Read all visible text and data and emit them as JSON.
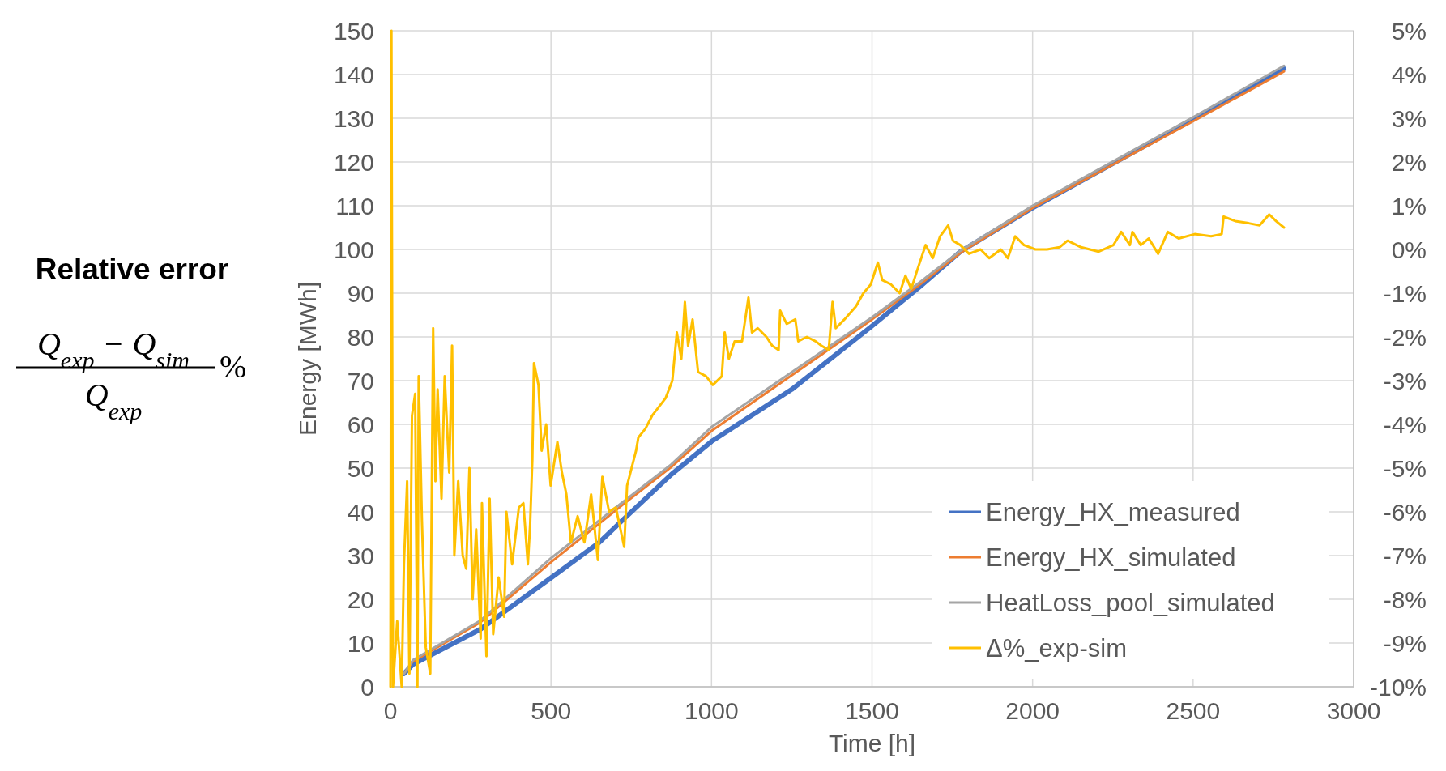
{
  "chart_data": {
    "type": "line",
    "xlabel": "Time [h]",
    "ylabel": "Energy [MWh]",
    "xlim": [
      0,
      3000
    ],
    "xticks": [
      0,
      500,
      1000,
      1500,
      2000,
      2500,
      3000
    ],
    "ylim": [
      0,
      150
    ],
    "yticks": [
      0,
      10,
      20,
      30,
      40,
      50,
      60,
      70,
      80,
      90,
      100,
      110,
      120,
      130,
      140,
      150
    ],
    "y2lim": [
      -10,
      5
    ],
    "y2ticks": [
      {
        "value": -10,
        "label": "-10%"
      },
      {
        "value": -9,
        "label": "-9%"
      },
      {
        "value": -8,
        "label": "-8%"
      },
      {
        "value": -7,
        "label": "-7%"
      },
      {
        "value": -6,
        "label": "-6%"
      },
      {
        "value": -5,
        "label": "-5%"
      },
      {
        "value": -4,
        "label": "-4%"
      },
      {
        "value": -3,
        "label": "-3%"
      },
      {
        "value": -2,
        "label": "-2%"
      },
      {
        "value": -1,
        "label": "-1%"
      },
      {
        "value": 0,
        "label": "0%"
      },
      {
        "value": 1,
        "label": "1%"
      },
      {
        "value": 2,
        "label": "2%"
      },
      {
        "value": 3,
        "label": "3%"
      },
      {
        "value": 4,
        "label": "4%"
      },
      {
        "value": 5,
        "label": "5%"
      }
    ],
    "grid": true,
    "legend": "bottom right",
    "annotations": [
      "Relative error",
      "Q$_{exp}$ − Q$_{sim}$",
      "Q$_{exp}$",
      "%"
    ],
    "series": [
      {
        "name": "Energy_HX_measured",
        "color": "#4472c4",
        "x": [
          42,
          70,
          281,
          500,
          650,
          730,
          874,
          1000,
          1250,
          1500,
          1649,
          1775,
          2000,
          2500,
          2783
        ],
        "values": [
          3,
          5.1,
          13.2,
          24.9,
          33,
          38.6,
          48.5,
          56.1,
          68,
          82.5,
          91.5,
          99.5,
          109.5,
          129.8,
          141.3
        ]
      },
      {
        "name": "Energy_HX_simulated",
        "color": "#ed7d31",
        "x": [
          42,
          70,
          281,
          500,
          730,
          874,
          1000,
          1500,
          1649,
          1775,
          2000,
          2500,
          2783
        ],
        "values": [
          3,
          5.8,
          14.8,
          28.5,
          42,
          50.2,
          58.5,
          84,
          92,
          99.2,
          109.5,
          129.3,
          140.7
        ]
      },
      {
        "name": "HeatLoss_pool_simulated",
        "color": "#a5a5a5",
        "x": [
          42,
          70,
          281,
          500,
          730,
          874,
          1000,
          1500,
          1649,
          1775,
          2000,
          2500,
          2783
        ],
        "values": [
          3,
          6.1,
          15.2,
          29.4,
          42.6,
          50.8,
          59.4,
          84.5,
          92.5,
          99.7,
          110,
          130.2,
          142
        ]
      },
      {
        "name": "Δ%_exp-sim",
        "color": "#ffc000",
        "axis": "y2",
        "x": [
          0,
          3,
          8,
          21,
          35,
          42,
          52,
          59,
          67,
          77,
          84,
          88,
          98,
          110,
          124,
          133,
          140,
          147,
          159,
          169,
          183,
          192,
          199,
          211,
          225,
          236,
          246,
          256,
          267,
          281,
          285,
          299,
          309,
          320,
          337,
          354,
          361,
          379,
          400,
          414,
          428,
          435,
          442,
          447,
          461,
          471,
          485,
          499,
          520,
          534,
          548,
          562,
          583,
          604,
          625,
          646,
          660,
          681,
          702,
          728,
          737,
          765,
          772,
          794,
          815,
          836,
          857,
          878,
          892,
          906,
          917,
          927,
          941,
          958,
          983,
          1004,
          1032,
          1041,
          1054,
          1072,
          1095,
          1115,
          1126,
          1144,
          1171,
          1189,
          1209,
          1214,
          1234,
          1261,
          1270,
          1297,
          1324,
          1342,
          1365,
          1377,
          1387,
          1414,
          1450,
          1473,
          1496,
          1518,
          1532,
          1559,
          1586,
          1604,
          1622,
          1644,
          1667,
          1689,
          1712,
          1737,
          1752,
          1775,
          1802,
          1838,
          1865,
          1901,
          1923,
          1946,
          1973,
          2009,
          2045,
          2084,
          2109,
          2151,
          2206,
          2252,
          2276,
          2303,
          2311,
          2337,
          2362,
          2391,
          2421,
          2455,
          2505,
          2556,
          2589,
          2595,
          2631,
          2673,
          2707,
          2737,
          2758,
          2783
        ],
        "values": [
          -10,
          5,
          -10,
          -8.5,
          -10,
          -7.2,
          -5.3,
          -9.7,
          -3.8,
          -3.3,
          -10,
          -2.9,
          -6.2,
          -9.1,
          -9.7,
          -1.8,
          -5.3,
          -3.2,
          -5.7,
          -2.9,
          -5.1,
          -2.2,
          -7,
          -5.3,
          -7,
          -7.3,
          -5,
          -8,
          -6.4,
          -8.9,
          -5.8,
          -9.3,
          -5.7,
          -8.8,
          -7.5,
          -8.4,
          -6,
          -7.2,
          -5.9,
          -5.8,
          -7.2,
          -6.3,
          -4.8,
          -2.6,
          -3.1,
          -4.6,
          -4,
          -5.4,
          -4.4,
          -5.1,
          -5.6,
          -6.7,
          -6.1,
          -6.7,
          -5.6,
          -7.1,
          -5.2,
          -6,
          -5.9,
          -6.8,
          -5.4,
          -4.6,
          -4.3,
          -4.1,
          -3.8,
          -3.6,
          -3.4,
          -3,
          -1.9,
          -2.5,
          -1.2,
          -2.2,
          -1.6,
          -2.8,
          -2.9,
          -3.1,
          -2.9,
          -1.9,
          -2.5,
          -2.1,
          -2.1,
          -1.1,
          -1.9,
          -1.8,
          -2,
          -2.2,
          -2.3,
          -1.4,
          -1.7,
          -1.6,
          -2.1,
          -2,
          -2.1,
          -2.2,
          -2.3,
          -1.2,
          -1.8,
          -1.6,
          -1.3,
          -1,
          -0.8,
          -0.3,
          -0.7,
          -0.8,
          -1,
          -0.6,
          -0.9,
          -0.4,
          0.1,
          -0.2,
          0.3,
          0.55,
          0.2,
          0.1,
          -0.1,
          0,
          -0.2,
          0,
          -0.2,
          0.3,
          0.1,
          0,
          0,
          0.05,
          0.2,
          0.05,
          -0.05,
          0.1,
          0.4,
          0.1,
          0.4,
          0.1,
          0.25,
          -0.1,
          0.4,
          0.25,
          0.35,
          0.3,
          0.35,
          0.75,
          0.65,
          0.6,
          0.55,
          0.8,
          0.65,
          0.5
        ]
      }
    ]
  }
}
